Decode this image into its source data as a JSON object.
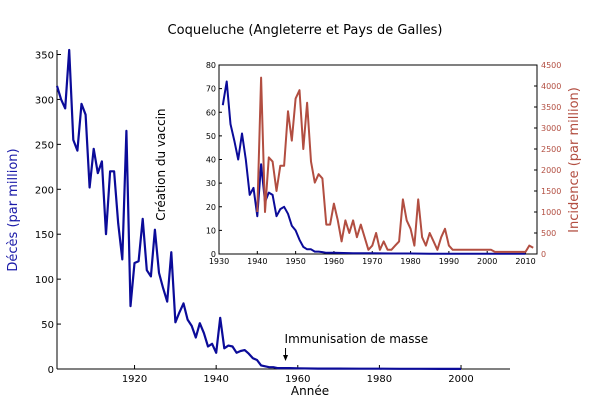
{
  "chart_data": {
    "title": "Coqueluche (Angleterre et Pays de Galles)",
    "charts": [
      {
        "id": "main",
        "type": "line",
        "xlabel": "Année",
        "ylabel": "Décès (par million)",
        "xlim": [
          1901,
          2012
        ],
        "ylim": [
          0,
          355
        ],
        "x_ticks": [
          1920,
          1940,
          1960,
          1980,
          2000
        ],
        "y_ticks": [
          0,
          50,
          100,
          150,
          200,
          250,
          300,
          350
        ],
        "grid": false,
        "series": [
          {
            "color": "#0b0b99",
            "x": [
              1901,
              1902,
              1903,
              1904,
              1905,
              1906,
              1907,
              1908,
              1909,
              1910,
              1911,
              1912,
              1913,
              1914,
              1915,
              1916,
              1917,
              1918,
              1919,
              1920,
              1921,
              1922,
              1923,
              1924,
              1925,
              1926,
              1927,
              1928,
              1929,
              1930,
              1931,
              1932,
              1933,
              1934,
              1935,
              1936,
              1937,
              1938,
              1939,
              1940,
              1941,
              1942,
              1943,
              1944,
              1945,
              1946,
              1947,
              1948,
              1949,
              1950,
              1951,
              1952,
              1953,
              1954,
              1955,
              1956,
              1957,
              1958,
              1960,
              1965,
              1970,
              1975,
              1980,
              1985,
              1990,
              1995,
              2000
            ],
            "y": [
              315,
              300,
              290,
              355,
              255,
              243,
              295,
              283,
              202,
              245,
              218,
              231,
              150,
              220,
              220,
              162,
              122,
              265,
              70,
              118,
              120,
              167,
              110,
              103,
              155,
              107,
              90,
              75,
              130,
              52,
              63,
              73,
              55,
              48,
              35,
              51,
              40,
              25,
              28,
              18,
              57,
              23,
              26,
              25,
              18,
              20,
              21,
              17,
              12,
              10,
              4,
              3,
              2,
              2,
              1,
              1,
              1,
              1,
              0.8,
              0.5,
              0.4,
              0.3,
              0.3,
              0.2,
              0.2,
              0.1,
              0.1
            ]
          }
        ],
        "annotations": [
          {
            "text": "Création du vaccin",
            "x": 1926,
            "y": 165
          },
          {
            "text": "Immunisation de masse",
            "x": 1957,
            "y": 10
          }
        ]
      },
      {
        "id": "inset",
        "type": "line",
        "xlim": [
          1930,
          2013
        ],
        "ylim_left": [
          0,
          80
        ],
        "ylim_right": [
          0,
          4500
        ],
        "ylabel_right": "Incidence (par million)",
        "x_ticks": [
          1930,
          1940,
          1950,
          1960,
          1970,
          1980,
          1990,
          2000,
          2010
        ],
        "y_ticks_left": [
          0,
          10,
          20,
          30,
          40,
          50,
          60,
          70,
          80
        ],
        "y_ticks_right": [
          0,
          500,
          1000,
          1500,
          2000,
          2500,
          3000,
          3500,
          4000,
          4500
        ],
        "grid": false,
        "series": [
          {
            "axis": "left",
            "color": "#0b0b99",
            "x": [
              1931,
              1932,
              1933,
              1934,
              1935,
              1936,
              1937,
              1938,
              1939,
              1940,
              1941,
              1942,
              1943,
              1944,
              1945,
              1946,
              1947,
              1948,
              1949,
              1950,
              1951,
              1952,
              1953,
              1954,
              1955,
              1956,
              1957,
              1958,
              1960,
              1965,
              1970,
              1975,
              1980,
              1985,
              1990,
              1995,
              2000,
              2005,
              2010
            ],
            "y": [
              63,
              73,
              55,
              48,
              40,
              51,
              40,
              25,
              28,
              16,
              38,
              22,
              26,
              25,
              16,
              19,
              20,
              17,
              12,
              10,
              6,
              3,
              2,
              2,
              1,
              1,
              0.8,
              0.5,
              0.5,
              0.3,
              0.3,
              0.2,
              0.2,
              0.1,
              0.1,
              0.1,
              0.1,
              0.1,
              0.1
            ]
          },
          {
            "axis": "right",
            "color": "#b24e41",
            "x": [
              1940,
              1941,
              1942,
              1943,
              1944,
              1945,
              1946,
              1947,
              1948,
              1949,
              1950,
              1951,
              1952,
              1953,
              1954,
              1955,
              1956,
              1957,
              1958,
              1959,
              1960,
              1961,
              1962,
              1963,
              1964,
              1965,
              1966,
              1967,
              1968,
              1969,
              1970,
              1971,
              1972,
              1973,
              1974,
              1975,
              1976,
              1977,
              1978,
              1979,
              1980,
              1981,
              1982,
              1983,
              1984,
              1985,
              1986,
              1987,
              1988,
              1989,
              1990,
              1991,
              1992,
              1993,
              1994,
              1995,
              1996,
              1997,
              1998,
              1999,
              2000,
              2001,
              2002,
              2003,
              2004,
              2005,
              2006,
              2007,
              2008,
              2009,
              2010,
              2011,
              2012
            ],
            "y": [
              1000,
              4200,
              1000,
              2300,
              2200,
              1500,
              2100,
              2100,
              3400,
              2700,
              3700,
              3900,
              2500,
              3600,
              2200,
              1700,
              1900,
              1800,
              700,
              700,
              1200,
              800,
              300,
              800,
              500,
              800,
              400,
              700,
              400,
              100,
              200,
              500,
              100,
              300,
              100,
              100,
              200,
              300,
              1300,
              800,
              600,
              200,
              1300,
              400,
              200,
              500,
              300,
              100,
              400,
              600,
              200,
              100,
              100,
              100,
              100,
              100,
              100,
              100,
              100,
              100,
              100,
              100,
              50,
              50,
              50,
              50,
              50,
              50,
              50,
              50,
              50,
              200,
              150
            ]
          }
        ]
      }
    ]
  }
}
